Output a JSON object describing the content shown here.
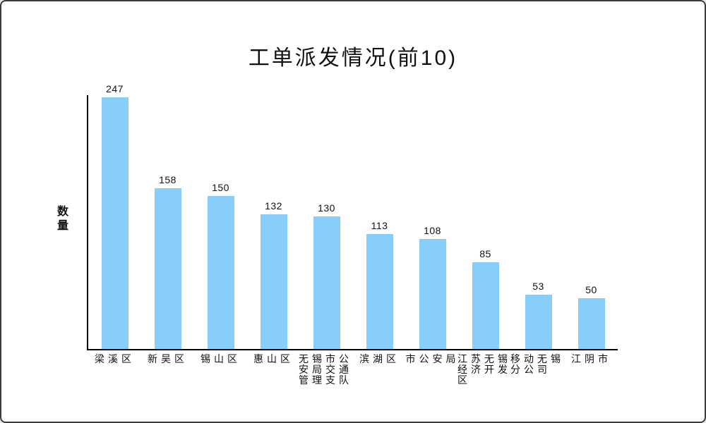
{
  "window": {
    "background": "#ffffff",
    "border_color": "#3c3c3c"
  },
  "chart_data": {
    "type": "bar",
    "title": "工单派发情况(前10)",
    "xlabel": "",
    "ylabel": "数量",
    "categories": [
      "梁溪区",
      "新吴区",
      "锡山区",
      "惠山区",
      "无锡市公安局交通管理支队",
      "滨湖区",
      "市公安局",
      "江苏无锡经济开发区",
      "移动无锡分公司",
      "江阴市"
    ],
    "values": [
      247,
      158,
      150,
      132,
      130,
      113,
      108,
      85,
      53,
      50
    ],
    "ylim": [
      0,
      249
    ],
    "bar_color": "#87CEFA",
    "text_color": "#111111",
    "axis_color": "#000000",
    "grid": false,
    "legend": false,
    "value_labels_shown": true
  }
}
